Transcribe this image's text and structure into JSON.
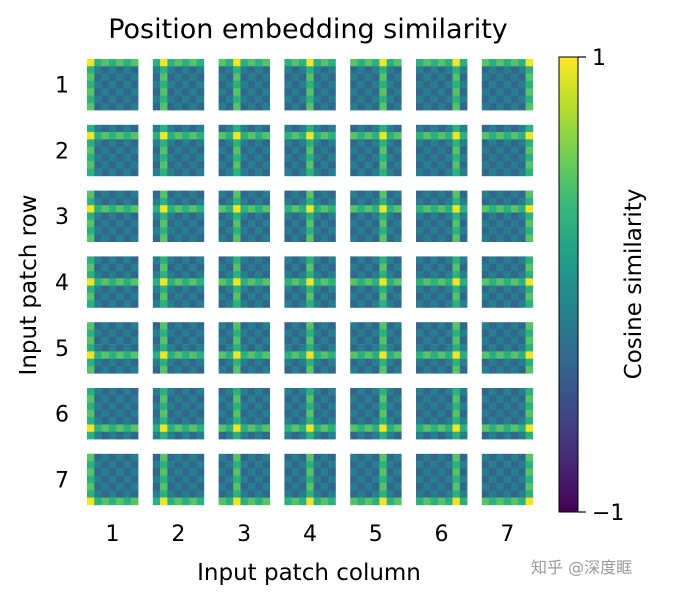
{
  "chart_data": {
    "type": "heatmap",
    "title": "Position embedding similarity",
    "xlabel": "Input patch column",
    "ylabel": "Input patch row",
    "row_ticks": [
      "1",
      "2",
      "3",
      "4",
      "5",
      "6",
      "7"
    ],
    "col_ticks": [
      "1",
      "2",
      "3",
      "4",
      "5",
      "6",
      "7"
    ],
    "grid_rows": 7,
    "grid_cols": 7,
    "cells_per_patch": 7,
    "colorbar": {
      "label": "Cosine similarity",
      "range": [
        -1,
        1
      ],
      "tick_labels": [
        "1",
        "−1"
      ],
      "colormap": [
        "#440154",
        "#482878",
        "#3e4989",
        "#31688e",
        "#26828e",
        "#1f9e89",
        "#35b779",
        "#6ece58",
        "#b5de2b",
        "#fde725"
      ]
    },
    "description_of_values": "Each small square shows cosine similarity between the position embedding of patch (row, col) and all 7x7 patches; bright yellow at same row/col, teal elsewhere."
  },
  "watermark": "知乎 @深度眶"
}
